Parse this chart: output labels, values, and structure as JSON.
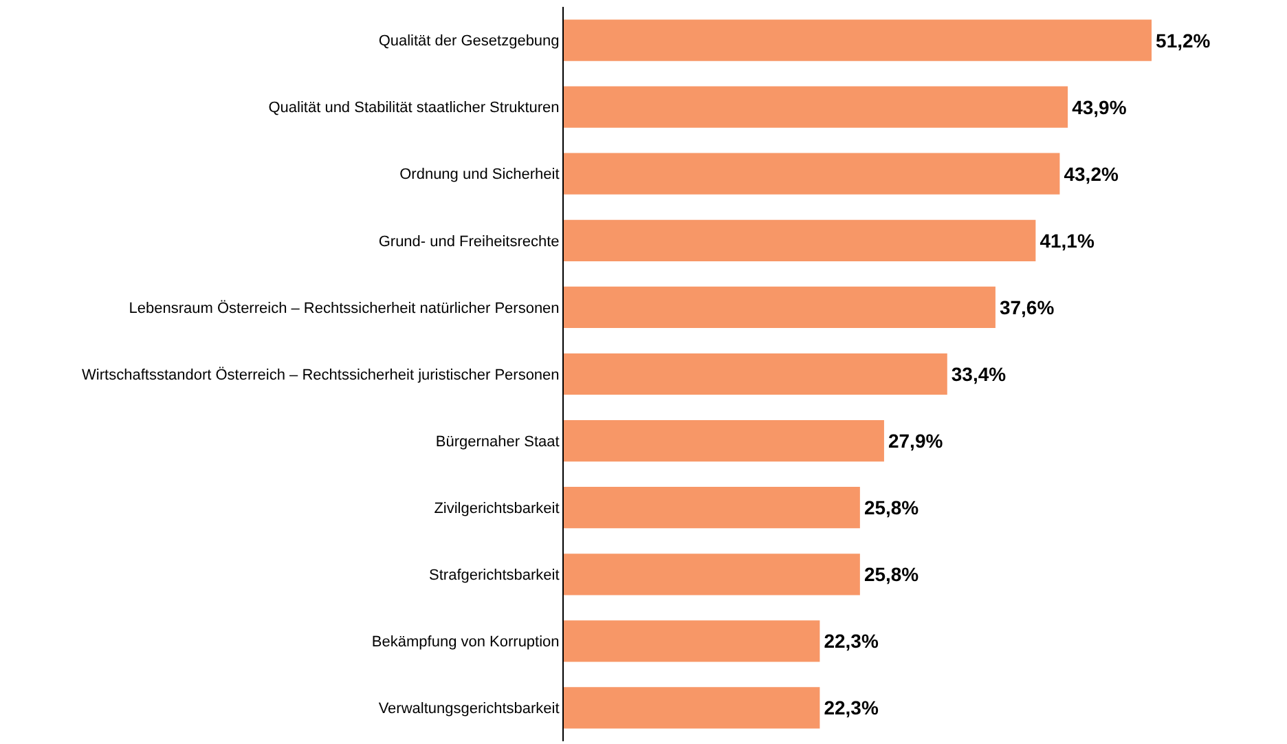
{
  "chart_data": {
    "type": "bar",
    "orientation": "horizontal",
    "categories": [
      "Qualität der Gesetzgebung",
      "Qualität und Stabilität staatlicher Strukturen",
      "Ordnung und Sicherheit",
      "Grund- und Freiheitsrechte",
      "Lebensraum Österreich – Rechtssicherheit natürlicher Personen",
      "Wirtschaftsstandort Österreich – Rechtssicherheit juristischer Personen",
      "Bürgernaher Staat",
      "Zivilgerichtsbarkeit",
      "Strafgerichtsbarkeit",
      "Bekämpfung von Korruption",
      "Verwaltungsgerichtsbarkeit"
    ],
    "values": [
      51.2,
      43.9,
      43.2,
      41.1,
      37.6,
      33.4,
      27.9,
      25.8,
      25.8,
      22.3,
      22.3
    ],
    "value_labels": [
      "51,2%",
      "43,9%",
      "43,2%",
      "41,1%",
      "37,6%",
      "33,4%",
      "27,9%",
      "25,8%",
      "25,8%",
      "22,3%",
      "22,3%"
    ],
    "color": "#f79767"
  }
}
